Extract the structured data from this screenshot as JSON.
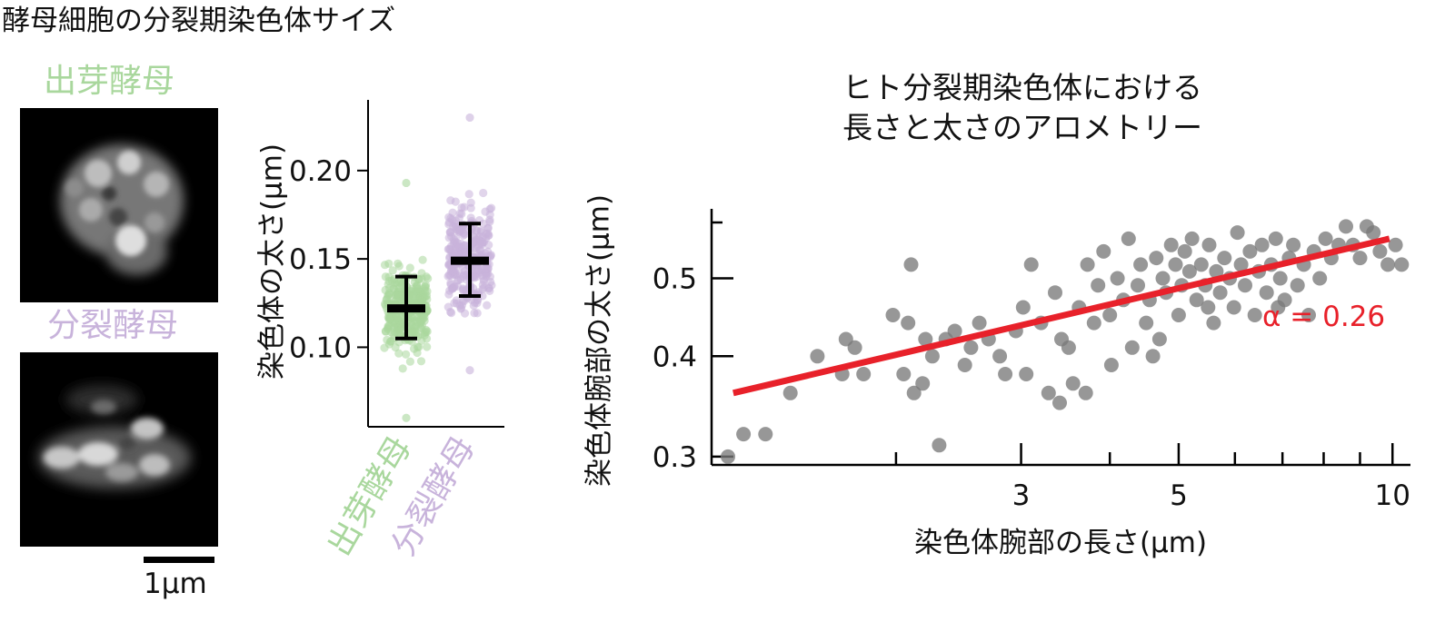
{
  "figure_title": "酵母細胞の分裂期染色体サイズ",
  "micrographs": {
    "budding_label": "出芽酵母",
    "fission_label": "分裂酵母",
    "scale_bar_label": "1μm"
  },
  "colors": {
    "budding": "#a9d79d",
    "fission": "#c8b3db",
    "fit_line": "#e8212a",
    "points": "#7a7a7a"
  },
  "chart_data": [
    {
      "type": "scatter",
      "title": "",
      "xlabel": "",
      "ylabel": "染色体の太さ(μm)",
      "ylim": [
        0.055,
        0.24
      ],
      "yticks": [
        0.1,
        0.15,
        0.2
      ],
      "ytick_labels": [
        "0.10",
        "0.15",
        "0.20"
      ],
      "categories": [
        "出芽酵母",
        "分裂酵母"
      ],
      "category_colors": [
        "#a9d79d",
        "#c8b3db"
      ],
      "summary": [
        {
          "category": "出芽酵母",
          "mean": 0.122,
          "lower": 0.105,
          "upper": 0.14
        },
        {
          "category": "分裂酵母",
          "mean": 0.149,
          "lower": 0.129,
          "upper": 0.17
        }
      ],
      "distribution": [
        {
          "category": "出芽酵母",
          "min": 0.06,
          "max": 0.193
        },
        {
          "category": "分裂酵母",
          "min": 0.087,
          "max": 0.23
        }
      ]
    },
    {
      "type": "scatter",
      "title": "ヒト分裂期染色体における\n長さと太さのアロメトリー",
      "xlabel": "染色体腕部の長さ(μm)",
      "ylabel": "染色体腕部の太さ(μm)",
      "xscale": "log",
      "yscale": "log",
      "xlim": [
        1.1,
        10.6
      ],
      "ylim": [
        0.293,
        0.61
      ],
      "xtick_labels": [
        "3",
        "5",
        "10"
      ],
      "xticks": [
        3,
        5,
        10
      ],
      "ytick_labels": [
        "0.3",
        "0.4",
        "0.5"
      ],
      "yticks": [
        0.3,
        0.4,
        0.5
      ],
      "fit": {
        "slope": 0.26,
        "x_start": 1.18,
        "x_end": 9.9,
        "y_start": 0.36,
        "y_end": 0.56
      },
      "fit_label": "α = 0.26",
      "points": [
        [
          1.16,
          0.3
        ],
        [
          1.22,
          0.32
        ],
        [
          1.31,
          0.32
        ],
        [
          1.42,
          0.36
        ],
        [
          1.55,
          0.4
        ],
        [
          1.68,
          0.38
        ],
        [
          1.7,
          0.42
        ],
        [
          1.75,
          0.41
        ],
        [
          1.8,
          0.38
        ],
        [
          1.98,
          0.45
        ],
        [
          2.05,
          0.38
        ],
        [
          2.08,
          0.44
        ],
        [
          2.12,
          0.36
        ],
        [
          2.18,
          0.37
        ],
        [
          2.2,
          0.42
        ],
        [
          2.25,
          0.4
        ],
        [
          2.3,
          0.31
        ],
        [
          2.35,
          0.42
        ],
        [
          2.42,
          0.43
        ],
        [
          2.5,
          0.39
        ],
        [
          2.55,
          0.41
        ],
        [
          2.62,
          0.44
        ],
        [
          2.7,
          0.42
        ],
        [
          2.8,
          0.4
        ],
        [
          2.85,
          0.38
        ],
        [
          2.95,
          0.43
        ],
        [
          3.02,
          0.46
        ],
        [
          3.05,
          0.38
        ],
        [
          3.1,
          0.52
        ],
        [
          3.2,
          0.44
        ],
        [
          3.28,
          0.36
        ],
        [
          3.35,
          0.48
        ],
        [
          3.42,
          0.42
        ],
        [
          3.5,
          0.41
        ],
        [
          3.55,
          0.37
        ],
        [
          3.62,
          0.46
        ],
        [
          3.7,
          0.36
        ],
        [
          3.72,
          0.52
        ],
        [
          3.8,
          0.44
        ],
        [
          3.85,
          0.49
        ],
        [
          3.92,
          0.54
        ],
        [
          4.0,
          0.45
        ],
        [
          4.02,
          0.39
        ],
        [
          4.1,
          0.5
        ],
        [
          4.18,
          0.47
        ],
        [
          4.25,
          0.56
        ],
        [
          4.3,
          0.41
        ],
        [
          4.38,
          0.49
        ],
        [
          4.42,
          0.52
        ],
        [
          4.5,
          0.44
        ],
        [
          4.55,
          0.47
        ],
        [
          4.6,
          0.4
        ],
        [
          4.65,
          0.53
        ],
        [
          4.75,
          0.5
        ],
        [
          4.8,
          0.48
        ],
        [
          4.88,
          0.55
        ],
        [
          4.95,
          0.52
        ],
        [
          5.0,
          0.45
        ],
        [
          5.05,
          0.49
        ],
        [
          5.1,
          0.54
        ],
        [
          5.18,
          0.51
        ],
        [
          5.22,
          0.56
        ],
        [
          5.3,
          0.47
        ],
        [
          5.38,
          0.52
        ],
        [
          5.45,
          0.49
        ],
        [
          5.52,
          0.55
        ],
        [
          5.6,
          0.44
        ],
        [
          5.65,
          0.51
        ],
        [
          5.72,
          0.48
        ],
        [
          5.8,
          0.53
        ],
        [
          5.9,
          0.5
        ],
        [
          5.98,
          0.46
        ],
        [
          6.05,
          0.57
        ],
        [
          6.12,
          0.52
        ],
        [
          6.2,
          0.49
        ],
        [
          6.3,
          0.54
        ],
        [
          6.4,
          0.45
        ],
        [
          6.48,
          0.51
        ],
        [
          6.55,
          0.55
        ],
        [
          6.65,
          0.48
        ],
        [
          6.75,
          0.52
        ],
        [
          6.85,
          0.56
        ],
        [
          6.95,
          0.5
        ],
        [
          7.05,
          0.47
        ],
        [
          7.15,
          0.53
        ],
        [
          7.25,
          0.55
        ],
        [
          7.35,
          0.49
        ],
        [
          7.5,
          0.52
        ],
        [
          7.62,
          0.45
        ],
        [
          7.75,
          0.54
        ],
        [
          7.9,
          0.5
        ],
        [
          8.05,
          0.56
        ],
        [
          8.2,
          0.53
        ],
        [
          8.4,
          0.55
        ],
        [
          8.6,
          0.58
        ],
        [
          8.8,
          0.55
        ],
        [
          9.0,
          0.53
        ],
        [
          9.2,
          0.58
        ],
        [
          9.4,
          0.57
        ],
        [
          9.6,
          0.54
        ],
        [
          9.85,
          0.52
        ],
        [
          10.1,
          0.55
        ],
        [
          10.3,
          0.52
        ],
        [
          3.4,
          0.35
        ],
        [
          2.1,
          0.52
        ],
        [
          4.7,
          0.42
        ],
        [
          5.5,
          0.46
        ],
        [
          6.9,
          0.46
        ]
      ]
    }
  ]
}
